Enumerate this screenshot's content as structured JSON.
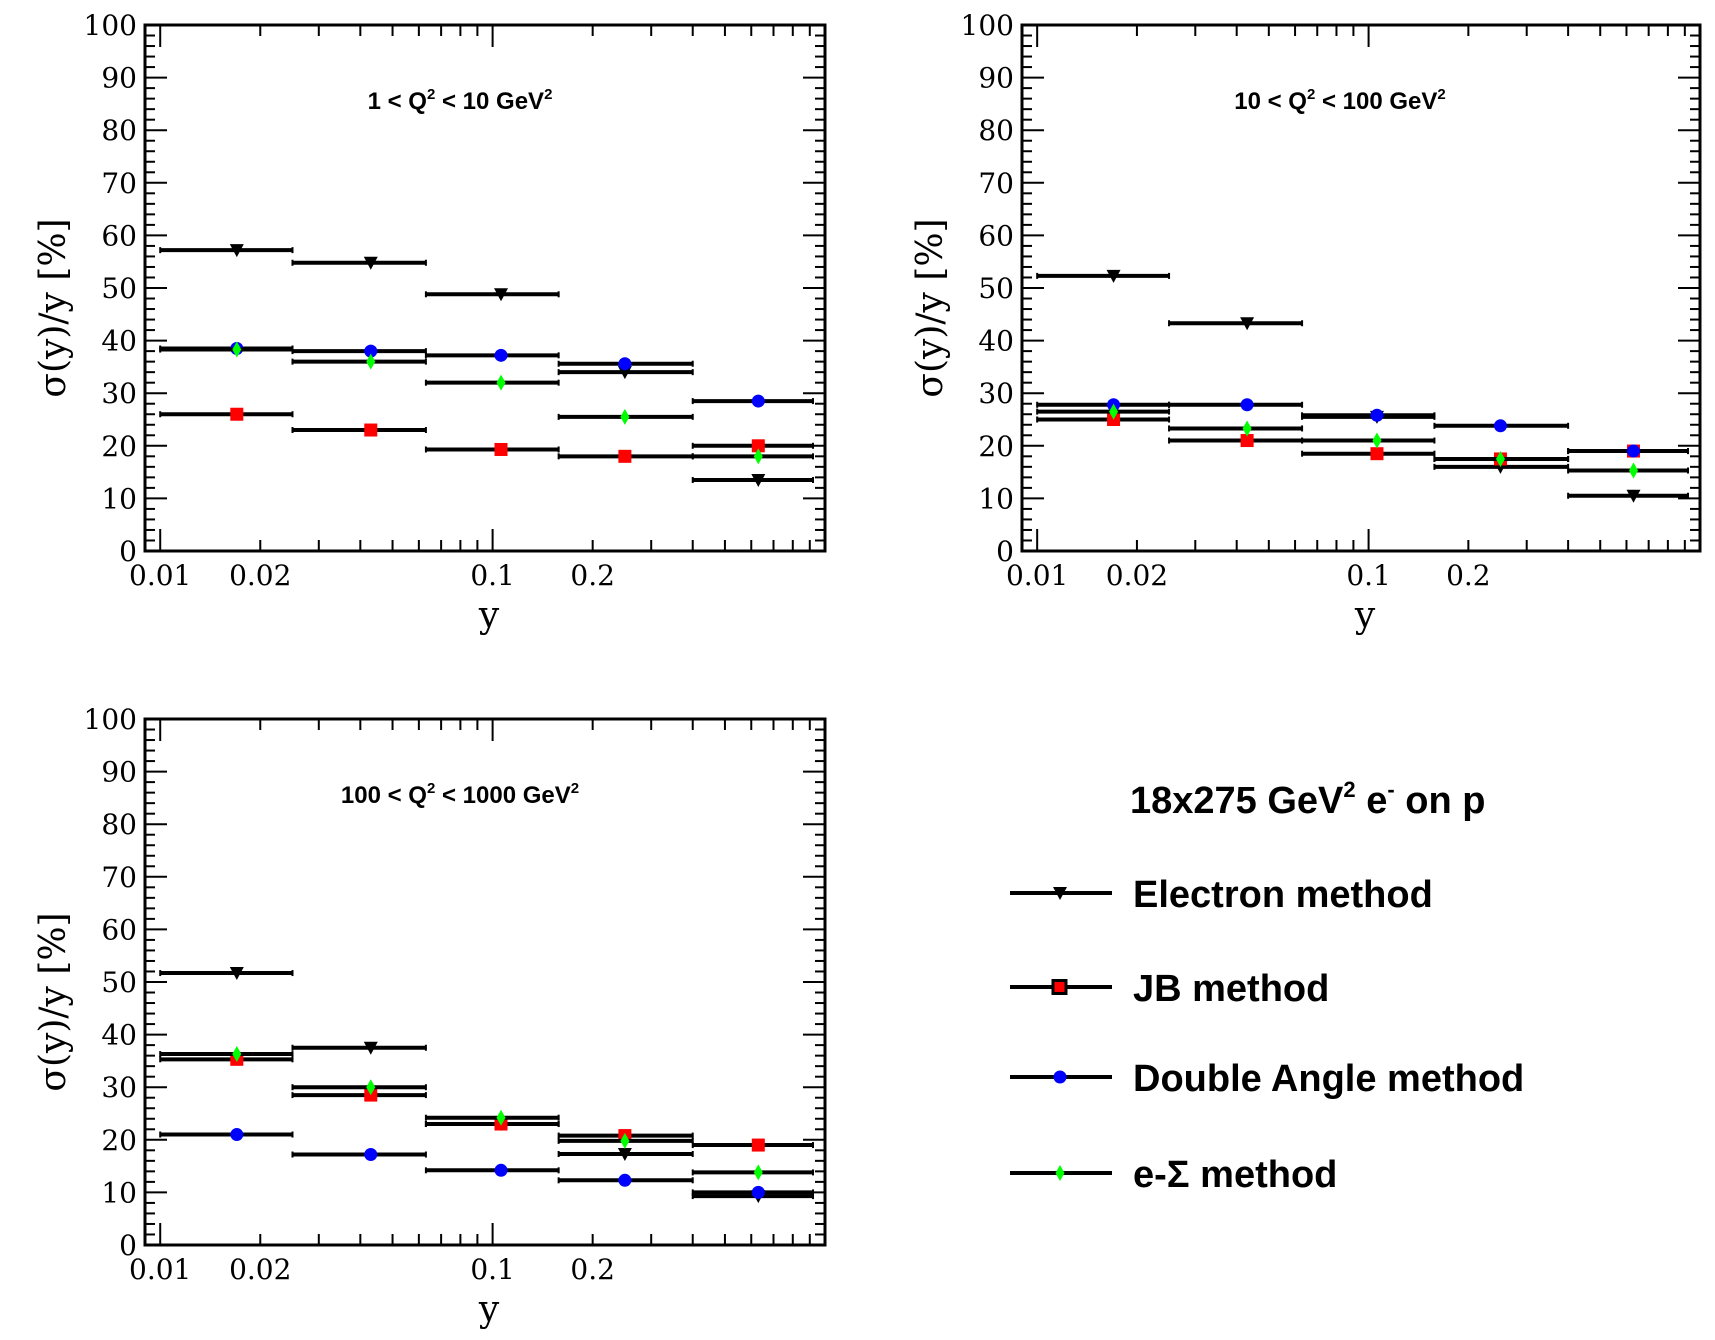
{
  "chart_data": [
    {
      "type": "scatter",
      "title": "1 < Q² < 10 GeV²",
      "title_parts": [
        "1 < Q",
        "2",
        " < 10 GeV",
        "2"
      ],
      "xlabel": "y",
      "ylabel": "σ(y)/y [%]",
      "x_scale": "log",
      "xlim": [
        0.009,
        1.0
      ],
      "ylim": [
        0,
        100
      ],
      "x_tick_labels": [
        "0.01",
        "0.02",
        "0.1",
        "0.2"
      ],
      "y_tick_labels": [
        "0",
        "10",
        "20",
        "30",
        "40",
        "50",
        "60",
        "70",
        "80",
        "90",
        "100"
      ],
      "bins": [
        [
          0.01,
          0.025
        ],
        [
          0.025,
          0.063
        ],
        [
          0.063,
          0.158
        ],
        [
          0.158,
          0.4
        ],
        [
          0.4,
          1.0
        ]
      ],
      "x": [
        0.017,
        0.043,
        0.106,
        0.25,
        0.63
      ],
      "series": [
        {
          "name": "Electron method",
          "values": [
            57.2,
            54.8,
            48.8,
            34.0,
            13.5
          ]
        },
        {
          "name": "JB method",
          "values": [
            26.0,
            23.0,
            19.3,
            18.0,
            20.0
          ]
        },
        {
          "name": "Double Angle method",
          "values": [
            38.5,
            38.0,
            37.2,
            35.6,
            28.5
          ]
        },
        {
          "name": "e-Σ method",
          "values": [
            38.3,
            36.0,
            32.0,
            25.5,
            18.0
          ]
        }
      ]
    },
    {
      "type": "scatter",
      "title": "10 < Q² < 100 GeV²",
      "title_parts": [
        "10 < Q",
        "2",
        " < 100 GeV",
        "2"
      ],
      "xlabel": "y",
      "ylabel": "σ(y)/y [%]",
      "x_scale": "log",
      "xlim": [
        0.009,
        1.0
      ],
      "ylim": [
        0,
        100
      ],
      "x_tick_labels": [
        "0.01",
        "0.02",
        "0.1",
        "0.2"
      ],
      "y_tick_labels": [
        "0",
        "10",
        "20",
        "30",
        "40",
        "50",
        "60",
        "70",
        "80",
        "90",
        "100"
      ],
      "bins": [
        [
          0.01,
          0.025
        ],
        [
          0.025,
          0.063
        ],
        [
          0.063,
          0.158
        ],
        [
          0.158,
          0.4
        ],
        [
          0.4,
          1.0
        ]
      ],
      "x": [
        0.017,
        0.043,
        0.106,
        0.25,
        0.63
      ],
      "series": [
        {
          "name": "Electron method",
          "values": [
            52.3,
            43.3,
            25.5,
            16.0,
            10.5
          ]
        },
        {
          "name": "JB method",
          "values": [
            25.0,
            21.0,
            18.5,
            17.5,
            19.0
          ]
        },
        {
          "name": "Double Angle method",
          "values": [
            27.8,
            27.8,
            25.8,
            23.8,
            19.0
          ]
        },
        {
          "name": "e-Σ method",
          "values": [
            26.5,
            23.3,
            21.0,
            17.5,
            15.3
          ]
        }
      ]
    },
    {
      "type": "scatter",
      "title": "100 < Q² < 1000 GeV²",
      "title_parts": [
        "100 < Q",
        "2",
        " < 1000 GeV",
        "2"
      ],
      "xlabel": "y",
      "ylabel": "σ(y)/y [%]",
      "x_scale": "log",
      "xlim": [
        0.009,
        1.0
      ],
      "ylim": [
        0,
        100
      ],
      "x_tick_labels": [
        "0.01",
        "0.02",
        "0.1",
        "0.2"
      ],
      "y_tick_labels": [
        "0",
        "10",
        "20",
        "30",
        "40",
        "50",
        "60",
        "70",
        "80",
        "90",
        "100"
      ],
      "bins": [
        [
          0.01,
          0.025
        ],
        [
          0.025,
          0.063
        ],
        [
          0.063,
          0.158
        ],
        [
          0.158,
          0.4
        ],
        [
          0.4,
          1.0
        ]
      ],
      "x": [
        0.017,
        0.043,
        0.106,
        0.25,
        0.63
      ],
      "series": [
        {
          "name": "Electron method",
          "values": [
            51.7,
            37.5,
            23.0,
            17.3,
            9.3
          ]
        },
        {
          "name": "JB method",
          "values": [
            35.3,
            28.5,
            23.0,
            20.8,
            19.0
          ]
        },
        {
          "name": "Double Angle method",
          "values": [
            21.0,
            17.2,
            14.2,
            12.3,
            10.0
          ]
        },
        {
          "name": "e-Σ method",
          "values": [
            36.3,
            30.0,
            24.2,
            19.8,
            13.8
          ]
        }
      ]
    }
  ],
  "legend": {
    "title_parts": [
      "18x275 GeV",
      "2",
      " e",
      "-",
      " on p"
    ],
    "items": [
      {
        "label": "Electron method",
        "marker": "triangle-down",
        "color": "#000000"
      },
      {
        "label": "JB method",
        "marker": "square",
        "color": "#ff0000"
      },
      {
        "label": "Double Angle method",
        "marker": "circle",
        "color": "#0000ff"
      },
      {
        "label": "e-Σ method",
        "marker": "diamond",
        "color": "#00ff00"
      }
    ]
  }
}
